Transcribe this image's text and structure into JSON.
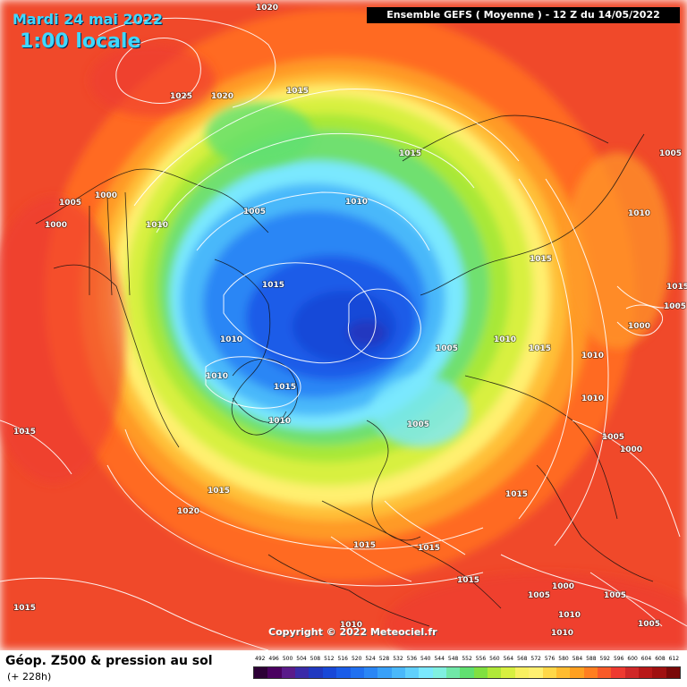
{
  "header": {
    "date": "Mardi 24 mai 2022",
    "local_time": "1:00 locale",
    "run_info": "Ensemble GEFS  ( Moyenne )  -  12 Z du 14/05/2022"
  },
  "copyright": "Copyright © 2022 Meteociel.fr",
  "footer": {
    "title": "Géop. Z500 & pression au sol",
    "lead_time": "(+ 228h)"
  },
  "legend": {
    "levels": [
      "492",
      "496",
      "500",
      "504",
      "508",
      "512",
      "516",
      "520",
      "524",
      "528",
      "532",
      "536",
      "540",
      "544",
      "548",
      "552",
      "556",
      "560",
      "564",
      "568",
      "572",
      "576",
      "580",
      "584",
      "588",
      "592",
      "596",
      "600",
      "604",
      "608",
      "612"
    ],
    "colors": [
      "#2d0036",
      "#4a0060",
      "#5a1a8a",
      "#3a2aa8",
      "#2038c0",
      "#1848d8",
      "#1a5ce8",
      "#2070f0",
      "#2a86f5",
      "#38a0f8",
      "#4ab8fa",
      "#60d0fc",
      "#7ae8fe",
      "#80f0e0",
      "#70e8a8",
      "#60e070",
      "#80e040",
      "#b0e838",
      "#d8f040",
      "#f8f060",
      "#fff070",
      "#ffd848",
      "#ffbc30",
      "#ffa020",
      "#ff7e20",
      "#f85a28",
      "#ee3a30",
      "#d02828",
      "#b81818",
      "#a01010",
      "#7a0808"
    ]
  },
  "colors": {
    "title_cyan": "#3fd8ff",
    "banner_bg": "#000000",
    "isobar": "#ffffff"
  },
  "pressure_labels": [
    "1020",
    "1025",
    "1020",
    "1015",
    "1000",
    "1005",
    "1000",
    "1010",
    "1005",
    "1015",
    "1010",
    "1015",
    "1010",
    "1010",
    "1015",
    "1010",
    "1005",
    "1010",
    "1015",
    "1015",
    "1020",
    "1015",
    "1015",
    "1015",
    "1015",
    "1015",
    "1010",
    "1005",
    "1010",
    "1010",
    "1005",
    "1015",
    "1005",
    "1000",
    "1000",
    "1010",
    "1010",
    "1005",
    "1000",
    "1005",
    "1005",
    "1005",
    "1010",
    "1015",
    "1015"
  ],
  "pressure_label_names": [
    "isobar-1020-top",
    "isobar-1025-pacific",
    "isobar-1020-pacific",
    "isobar-1015-alaska",
    "isobar-1000-west",
    "isobar-1005-west",
    "isobar-1000-west-low",
    "isobar-1010-canada",
    "isobar-1005-canada",
    "isobar-1015-arctic-canada",
    "isobar-1010-hudson",
    "isobar-1015-greenland",
    "isobar-1010-greenland-w",
    "isobar-1010-atlantic",
    "isobar-1015-siberia",
    "isobar-1010-siberia",
    "isobar-1005-ural",
    "isobar-1010-russia",
    "isobar-1015-kazakhstan",
    "isobar-1015-atlantic",
    "isobar-1020-azores",
    "isobar-1015-spain",
    "isobar-1015-med",
    "isobar-1015-mideast",
    "isobar-1015-pacific-w",
    "isobar-1015-atlantic-w",
    "isobar-1010-scandinavia",
    "isobar-1005-scandinavia",
    "isobar-1010-china",
    "isobar-1010-china-e",
    "isobar-1005-china",
    "isobar-1015-mongolia",
    "isobar-1005-east",
    "isobar-1000-east",
    "isobar-1000-japan",
    "isobar-1010-east",
    "isobar-1010-east-low",
    "isobar-1005-south-asia",
    "isobar-1000-south-asia",
    "isobar-1005-india",
    "isobar-1005-arabia",
    "isobar-1005-sahara",
    "isobar-1010-sahara",
    "isobar-1015-africa",
    "isobar-1015-pacific-se"
  ]
}
